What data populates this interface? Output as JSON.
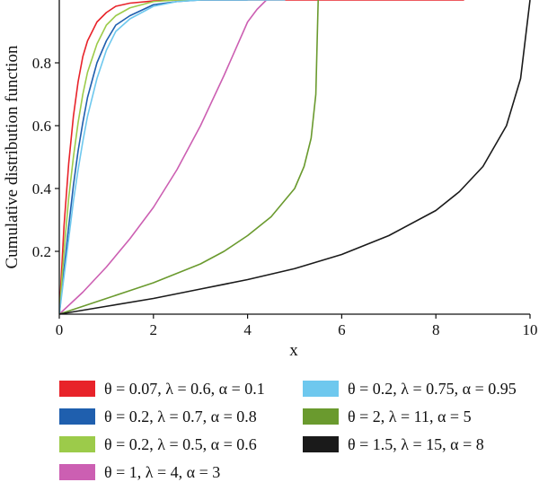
{
  "chart_data": {
    "type": "line",
    "title": "",
    "xlabel": "x",
    "ylabel": "Cumulative distribution function",
    "xlim": [
      0,
      10
    ],
    "ylim": [
      0,
      1
    ],
    "xticks": [
      "0",
      "2",
      "4",
      "6",
      "8",
      "10"
    ],
    "yticks": [
      "0.2",
      "0.4",
      "0.6",
      "0.8"
    ],
    "grid": false,
    "legend_position": "bottom",
    "series": [
      {
        "name": "θ = 0.07, λ = 0.6, α = 0.1",
        "color": "#e8232a",
        "x": [
          0,
          0.05,
          0.1,
          0.2,
          0.3,
          0.4,
          0.5,
          0.6,
          0.8,
          1.0,
          1.2,
          1.5,
          2.0,
          2.5,
          3.0,
          4.0,
          5.0,
          6.0,
          7.0,
          8.0,
          8.6
        ],
        "y": [
          0.0,
          0.14,
          0.28,
          0.48,
          0.63,
          0.74,
          0.82,
          0.87,
          0.93,
          0.96,
          0.98,
          0.99,
          0.997,
          1.0,
          1.0,
          1.0,
          1.0,
          1.0,
          1.0,
          1.0,
          1.0
        ]
      },
      {
        "name": "θ = 0.2, λ = 0.7, α = 0.8",
        "color": "#1f5fae",
        "x": [
          0,
          0.1,
          0.2,
          0.3,
          0.4,
          0.5,
          0.6,
          0.8,
          1.0,
          1.2,
          1.5,
          2.0,
          2.5,
          3.0,
          3.5,
          4.0
        ],
        "y": [
          0.0,
          0.14,
          0.28,
          0.41,
          0.52,
          0.61,
          0.69,
          0.8,
          0.87,
          0.92,
          0.95,
          0.985,
          0.995,
          1.0,
          1.0,
          1.0
        ]
      },
      {
        "name": "θ = 0.2, λ = 0.5, α = 0.6",
        "color": "#9ccb4a",
        "x": [
          0,
          0.1,
          0.2,
          0.3,
          0.4,
          0.5,
          0.6,
          0.8,
          1.0,
          1.2,
          1.5,
          2.0,
          2.5,
          3.0
        ],
        "y": [
          0.0,
          0.2,
          0.37,
          0.5,
          0.61,
          0.7,
          0.77,
          0.86,
          0.92,
          0.95,
          0.975,
          0.995,
          1.0,
          1.0
        ]
      },
      {
        "name": "θ = 1, λ = 4, α = 3",
        "color": "#cc5fb2",
        "x": [
          0,
          0.5,
          1.0,
          1.5,
          2.0,
          2.5,
          3.0,
          3.5,
          4.0,
          4.2,
          4.4
        ],
        "y": [
          0.0,
          0.07,
          0.15,
          0.24,
          0.34,
          0.46,
          0.6,
          0.76,
          0.93,
          0.97,
          1.0
        ]
      },
      {
        "name": "θ = 0.2, λ = 0.75, α = 0.95",
        "color": "#6ec8ee",
        "x": [
          0,
          0.1,
          0.2,
          0.3,
          0.4,
          0.5,
          0.6,
          0.8,
          1.0,
          1.2,
          1.5,
          2.0,
          2.5,
          3.0,
          4.0,
          4.8
        ],
        "y": [
          0.0,
          0.12,
          0.24,
          0.36,
          0.46,
          0.55,
          0.63,
          0.75,
          0.84,
          0.9,
          0.94,
          0.98,
          0.995,
          1.0,
          1.0,
          1.0
        ]
      },
      {
        "name": "θ = 2, λ = 11, α = 5",
        "color": "#6a9a2e",
        "x": [
          0,
          0.5,
          1.0,
          1.5,
          2.0,
          2.5,
          3.0,
          3.5,
          4.0,
          4.5,
          5.0,
          5.2,
          5.35,
          5.45,
          5.5
        ],
        "y": [
          0.0,
          0.025,
          0.05,
          0.075,
          0.1,
          0.13,
          0.16,
          0.2,
          0.25,
          0.31,
          0.4,
          0.47,
          0.56,
          0.7,
          1.0
        ]
      },
      {
        "name": "θ = 1.5, λ = 15, α = 8",
        "color": "#1a1a1a",
        "x": [
          0,
          1.0,
          2.0,
          3.0,
          4.0,
          5.0,
          6.0,
          7.0,
          8.0,
          8.5,
          9.0,
          9.5,
          9.8,
          10.0
        ],
        "y": [
          0.0,
          0.025,
          0.05,
          0.08,
          0.11,
          0.145,
          0.19,
          0.25,
          0.33,
          0.39,
          0.47,
          0.6,
          0.75,
          1.0
        ]
      }
    ],
    "legend_order": [
      0,
      4,
      1,
      5,
      2,
      6,
      3
    ]
  }
}
